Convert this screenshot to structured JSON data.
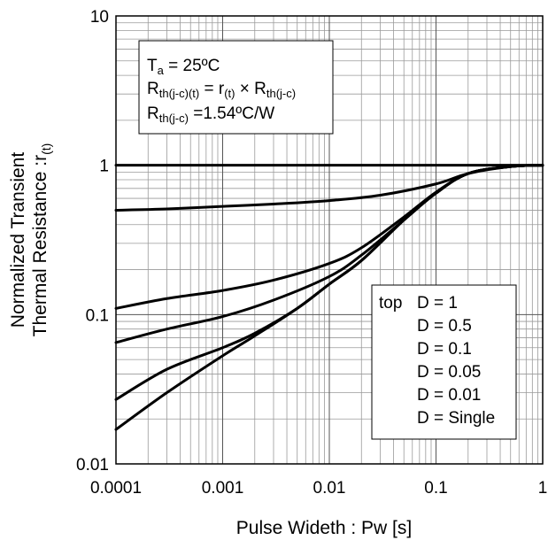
{
  "chart_data": {
    "type": "line",
    "xscale": "log",
    "yscale": "log",
    "xlim": [
      0.0001,
      1
    ],
    "ylim": [
      0.01,
      10
    ],
    "grid": true,
    "xlabel": "Pulse Wideth : Pw [s]",
    "ylabel_line1": "Normalized Transient",
    "ylabel_line2": "Thermal Resistance :r",
    "ylabel_sub": "(t)",
    "x_ticks": [
      "0.0001",
      "0.001",
      "0.01",
      "0.1",
      "1"
    ],
    "y_ticks": [
      "0.01",
      "0.1",
      "1",
      "10"
    ],
    "conditions": {
      "line1": {
        "main": "T",
        "sub": "a",
        "rest": " = 25ºC"
      },
      "line2": {
        "main": "R",
        "sub": "th(j-c)(t)",
        "mid": " = r",
        "sub2": "(t)",
        "mid2": " × R",
        "sub3": "th(j-c)"
      },
      "line3": {
        "main": "R",
        "sub": "th(j-c)",
        "rest": " =1.54ºC/W"
      }
    },
    "legend": {
      "position": "bottom-right",
      "prefix": "top",
      "entries": [
        "D = 1",
        "D = 0.5",
        "D = 0.1",
        "D = 0.05",
        "D = 0.01",
        "D = Single"
      ]
    },
    "series": [
      {
        "x": [
          0.0001,
          1
        ],
        "y": [
          1,
          1
        ]
      },
      {
        "x": [
          0.0001,
          0.0003,
          0.001,
          0.003,
          0.01,
          0.03,
          0.1,
          0.2,
          0.5,
          1
        ],
        "y": [
          0.5,
          0.51,
          0.53,
          0.55,
          0.58,
          0.63,
          0.75,
          0.88,
          0.98,
          1.0
        ]
      },
      {
        "x": [
          0.0001,
          0.0003,
          0.001,
          0.003,
          0.01,
          0.02,
          0.05,
          0.1,
          0.2,
          0.5,
          1
        ],
        "y": [
          0.11,
          0.128,
          0.145,
          0.17,
          0.22,
          0.28,
          0.45,
          0.66,
          0.88,
          0.98,
          1.0
        ]
      },
      {
        "x": [
          0.0001,
          0.0003,
          0.001,
          0.003,
          0.01,
          0.02,
          0.05,
          0.1,
          0.2,
          0.5,
          1
        ],
        "y": [
          0.065,
          0.08,
          0.097,
          0.125,
          0.18,
          0.25,
          0.43,
          0.65,
          0.88,
          0.98,
          1.0
        ]
      },
      {
        "x": [
          0.0001,
          0.0003,
          0.001,
          0.002,
          0.005,
          0.01,
          0.02,
          0.05,
          0.1,
          0.2,
          0.5,
          1
        ],
        "y": [
          0.027,
          0.043,
          0.06,
          0.075,
          0.11,
          0.16,
          0.23,
          0.43,
          0.65,
          0.88,
          0.98,
          1.0
        ]
      },
      {
        "x": [
          0.0001,
          0.0003,
          0.001,
          0.002,
          0.005,
          0.01,
          0.02,
          0.05,
          0.1,
          0.2,
          0.5,
          1
        ],
        "y": [
          0.017,
          0.03,
          0.053,
          0.072,
          0.11,
          0.16,
          0.23,
          0.43,
          0.65,
          0.88,
          0.98,
          1.0
        ]
      }
    ]
  }
}
